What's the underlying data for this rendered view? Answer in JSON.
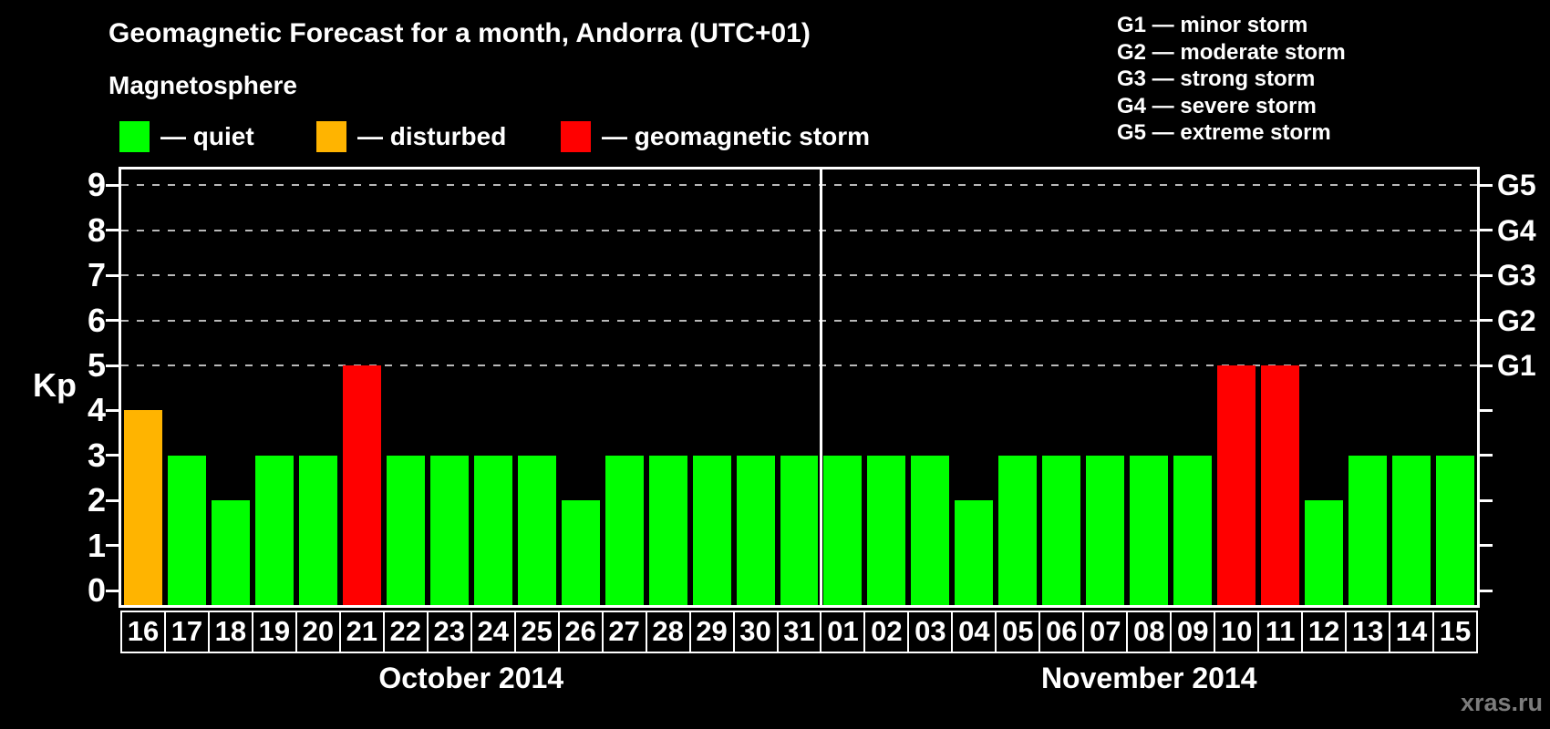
{
  "title": "Geomagnetic Forecast for a month, Andorra (UTC+01)",
  "legend": {
    "heading": "Magnetosphere",
    "items": [
      {
        "name": "quiet",
        "label": "— quiet",
        "color": "#00ff00"
      },
      {
        "name": "disturbed",
        "label": "— disturbed",
        "color": "#ffb400"
      },
      {
        "name": "storm",
        "label": "— geomagnetic storm",
        "color": "#ff0000"
      }
    ]
  },
  "g_scale_legend": [
    "G1 — minor storm",
    "G2 — moderate storm",
    "G3 — strong storm",
    "G4 — severe storm",
    "G5 — extreme storm"
  ],
  "watermark": "xras.ru",
  "chart_data": {
    "type": "bar",
    "ylabel": "Kp",
    "ylim": [
      0,
      9
    ],
    "y_ticks": [
      0,
      1,
      2,
      3,
      4,
      5,
      6,
      7,
      8,
      9
    ],
    "gridlines_at": [
      5,
      6,
      7,
      8,
      9
    ],
    "grid": "dashed horizontal at G-storm levels only",
    "legend_position": "top",
    "right_axis_labels": [
      {
        "kp": 5,
        "label": "G1"
      },
      {
        "kp": 6,
        "label": "G2"
      },
      {
        "kp": 7,
        "label": "G3"
      },
      {
        "kp": 8,
        "label": "G4"
      },
      {
        "kp": 9,
        "label": "G5"
      }
    ],
    "color_rule": {
      "storm_min": 5,
      "disturbed_value": 4,
      "quiet_max": 3
    },
    "colors": {
      "quiet": "#00ff00",
      "disturbed": "#ffb400",
      "storm": "#ff0000"
    },
    "months": [
      {
        "label": "October 2014",
        "days": [
          "16",
          "17",
          "18",
          "19",
          "20",
          "21",
          "22",
          "23",
          "24",
          "25",
          "26",
          "27",
          "28",
          "29",
          "30",
          "31"
        ],
        "values": [
          4,
          3,
          2,
          3,
          3,
          5,
          3,
          3,
          3,
          3,
          2,
          3,
          3,
          3,
          3,
          3
        ]
      },
      {
        "label": "November 2014",
        "days": [
          "01",
          "02",
          "03",
          "04",
          "05",
          "06",
          "07",
          "08",
          "09",
          "10",
          "11",
          "12",
          "13",
          "14",
          "15"
        ],
        "values": [
          3,
          3,
          3,
          2,
          3,
          3,
          3,
          3,
          3,
          5,
          5,
          2,
          3,
          3,
          3
        ]
      }
    ]
  }
}
